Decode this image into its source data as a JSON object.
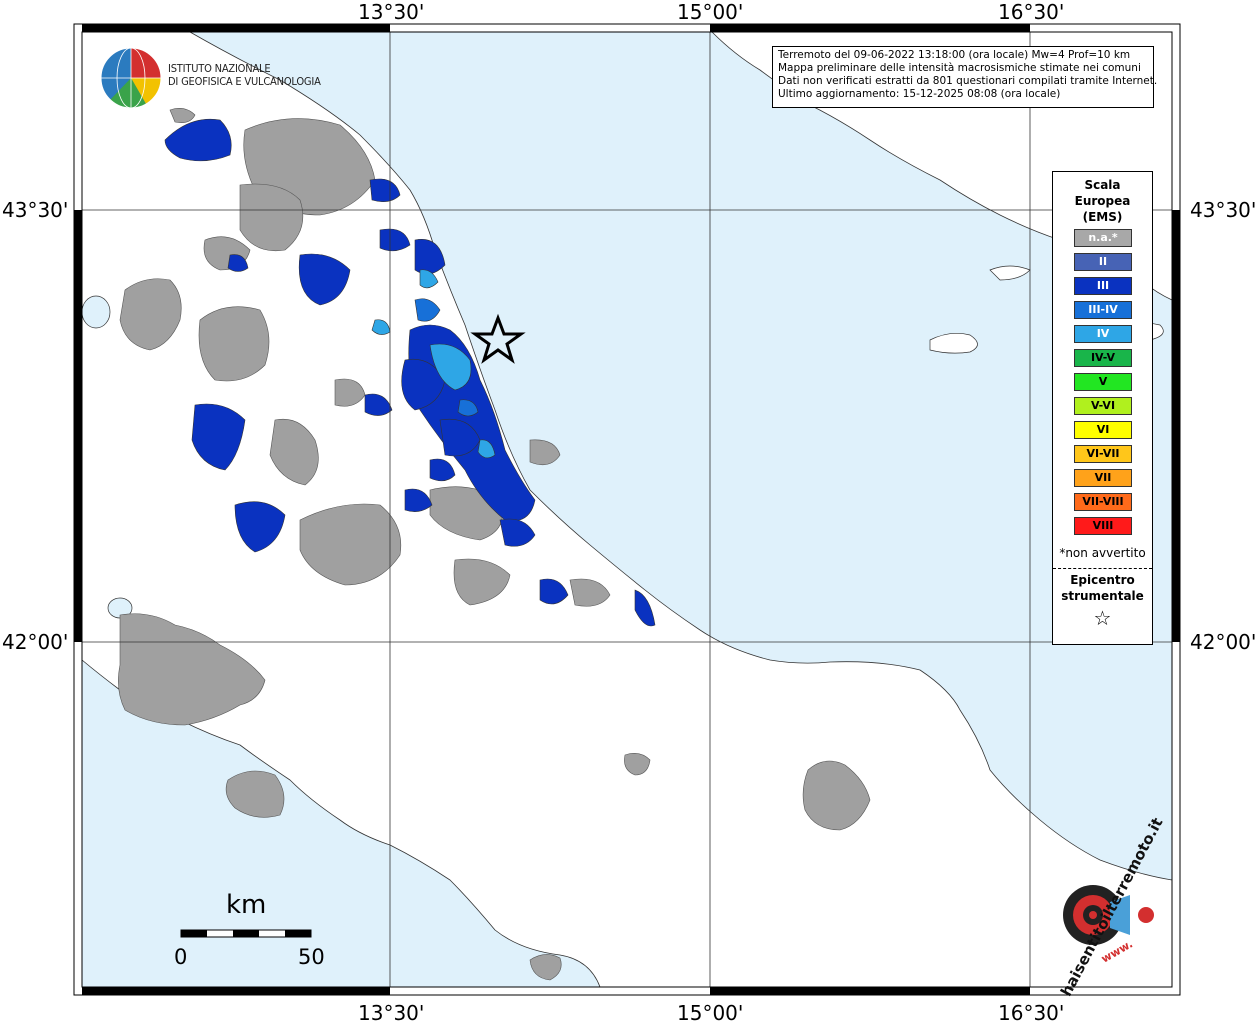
{
  "map": {
    "graticule": {
      "lon_labels": [
        "13°30'",
        "15°00'",
        "16°30'"
      ],
      "lat_labels": [
        "43°30'",
        "42°00'"
      ]
    },
    "colors": {
      "sea": "#dff1fb",
      "land": "#ffffff",
      "na_gray": "#a0a0a0",
      "intensity_III": "#0a32c0",
      "intensity_III_IV": "#1770d8",
      "intensity_IV": "#2ea6e6"
    }
  },
  "info": {
    "line1": "Terremoto del 09-06-2022 13:18:00 (ora locale) Mw=4 Prof=10 km",
    "line2": "Mappa preliminare delle intensità macrosismiche stimate nei comuni",
    "line3": "Dati non verificati estratti da 801 questionari compilati tramite Internet.",
    "line4": "Ultimo aggiornamento: 15-12-2025 08:08 (ora locale)"
  },
  "logo_ingv": {
    "line1": "ISTITUTO NAZIONALE",
    "line2": "DI GEOFISICA E VULCANOLOGIA"
  },
  "legend": {
    "title1": "Scala",
    "title2": "Europea",
    "title3": "(EMS)",
    "items": [
      {
        "label": "n.a.*",
        "color": "#a8a8a8",
        "text_color": "#ffffff"
      },
      {
        "label": "II",
        "color": "#4763b5",
        "text_color": "#ffffff"
      },
      {
        "label": "III",
        "color": "#0a32c0",
        "text_color": "#ffffff"
      },
      {
        "label": "III-IV",
        "color": "#1770d8",
        "text_color": "#ffffff"
      },
      {
        "label": "IV",
        "color": "#2ea6e6",
        "text_color": "#ffffff"
      },
      {
        "label": "IV-V",
        "color": "#19b54a",
        "text_color": "#000000"
      },
      {
        "label": "V",
        "color": "#22e622",
        "text_color": "#000000"
      },
      {
        "label": "V-VI",
        "color": "#b0f01e",
        "text_color": "#000000"
      },
      {
        "label": "VI",
        "color": "#ffff00",
        "text_color": "#000000"
      },
      {
        "label": "VI-VII",
        "color": "#ffc61a",
        "text_color": "#000000"
      },
      {
        "label": "VII",
        "color": "#ffa21a",
        "text_color": "#000000"
      },
      {
        "label": "VII-VIII",
        "color": "#ff6a1a",
        "text_color": "#000000"
      },
      {
        "label": "VIII",
        "color": "#ff1a1a",
        "text_color": "#000000"
      }
    ],
    "note": "*non avvertito",
    "epicentro1": "Epicentro",
    "epicentro2": "strumentale",
    "epicentro_symbol": "☆"
  },
  "scalebar": {
    "unit": "km",
    "start": "0",
    "end": "50"
  },
  "logo_hsit": {
    "text": "haisentitoilterremoto.it",
    "url_text": "www."
  }
}
